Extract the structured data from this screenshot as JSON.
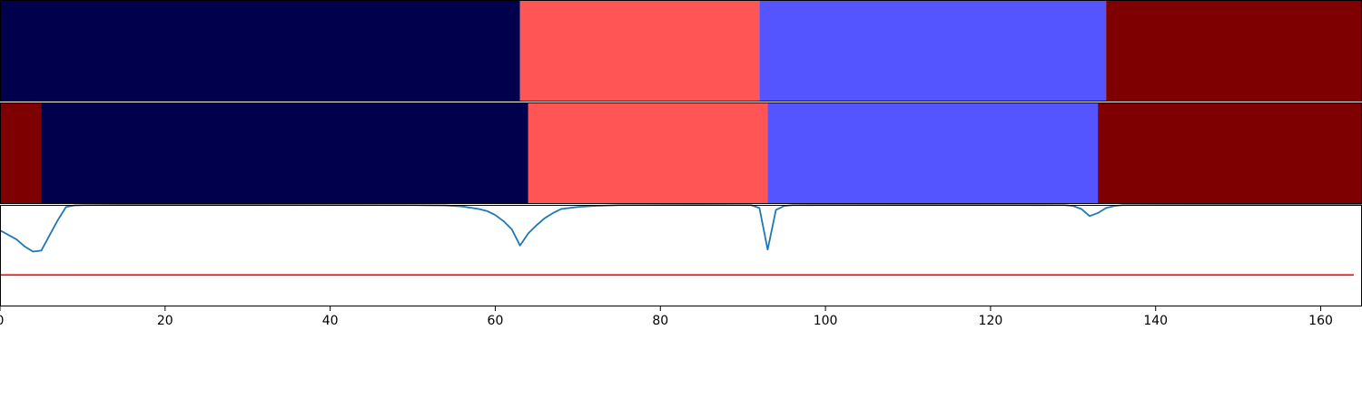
{
  "colors": {
    "class_0": "#00004c",
    "class_1": "#ff5555",
    "class_2": "#5555ff",
    "class_3": "#7f0000",
    "line": "#1f77b4",
    "threshold": "#e31a1c",
    "axis": "#000000",
    "background": "#ffffff"
  },
  "chart_data": [
    {
      "type": "heatmap",
      "title": "",
      "xlim": [
        0,
        165
      ],
      "segments": [
        {
          "start": 0,
          "end": 63,
          "class": "class_0"
        },
        {
          "start": 63,
          "end": 92,
          "class": "class_1"
        },
        {
          "start": 92,
          "end": 134,
          "class": "class_2"
        },
        {
          "start": 134,
          "end": 165,
          "class": "class_3"
        }
      ]
    },
    {
      "type": "heatmap",
      "title": "",
      "xlim": [
        0,
        165
      ],
      "segments": [
        {
          "start": 0,
          "end": 5,
          "class": "class_3"
        },
        {
          "start": 5,
          "end": 64,
          "class": "class_0"
        },
        {
          "start": 64,
          "end": 93,
          "class": "class_1"
        },
        {
          "start": 93,
          "end": 133,
          "class": "class_2"
        },
        {
          "start": 133,
          "end": 165,
          "class": "class_3"
        }
      ]
    },
    {
      "type": "line",
      "title": "",
      "xlabel": "",
      "ylabel": "",
      "xlim": [
        0,
        165
      ],
      "ylim": [
        0,
        1
      ],
      "grid": false,
      "xticks": [
        0,
        20,
        40,
        60,
        80,
        100,
        120,
        140,
        160
      ],
      "xtick_labels": [
        "0",
        "20",
        "40",
        "60",
        "80",
        "100",
        "120",
        "140",
        "160"
      ],
      "series": [
        {
          "points": [
            [
              0,
              0.75
            ],
            [
              2,
              0.66
            ],
            [
              3,
              0.59
            ],
            [
              4,
              0.54
            ],
            [
              5,
              0.55
            ],
            [
              6,
              0.7
            ],
            [
              7,
              0.85
            ],
            [
              8,
              0.98
            ],
            [
              9,
              0.995
            ],
            [
              10,
              0.998
            ],
            [
              15,
              1.0
            ],
            [
              30,
              1.0
            ],
            [
              50,
              0.998
            ],
            [
              54,
              0.995
            ],
            [
              56,
              0.985
            ],
            [
              58,
              0.96
            ],
            [
              59,
              0.94
            ],
            [
              60,
              0.9
            ],
            [
              61,
              0.84
            ],
            [
              62,
              0.76
            ],
            [
              63,
              0.6
            ],
            [
              64,
              0.72
            ],
            [
              65,
              0.8
            ],
            [
              66,
              0.87
            ],
            [
              67,
              0.92
            ],
            [
              68,
              0.96
            ],
            [
              70,
              0.98
            ],
            [
              72,
              0.99
            ],
            [
              75,
              0.998
            ],
            [
              85,
              1.0
            ],
            [
              91,
              0.998
            ],
            [
              92,
              0.97
            ],
            [
              93,
              0.56
            ],
            [
              94,
              0.95
            ],
            [
              95,
              0.99
            ],
            [
              96,
              0.998
            ],
            [
              110,
              1.0
            ],
            [
              129,
              0.998
            ],
            [
              130,
              0.99
            ],
            [
              131,
              0.96
            ],
            [
              132,
              0.89
            ],
            [
              133,
              0.92
            ],
            [
              134,
              0.97
            ],
            [
              135,
              0.99
            ],
            [
              136,
              0.998
            ],
            [
              150,
              1.0
            ],
            [
              165,
              1.0
            ]
          ]
        },
        {
          "points": [
            [
              0,
              0.31
            ],
            [
              164,
              0.31
            ]
          ]
        }
      ]
    }
  ]
}
